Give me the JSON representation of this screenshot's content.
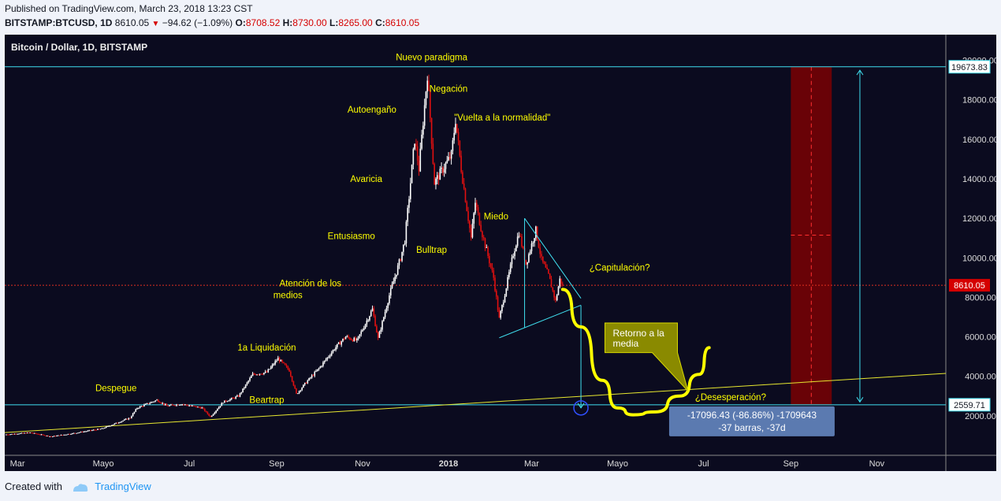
{
  "header": {
    "published": "Published on TradingView.com, March 23, 2018 13:23 CST",
    "symbol": "BITSTAMP:BTCUSD, 1D",
    "last": "8610.05",
    "change": "−94.62 (−1.09%)",
    "o_label": "O:",
    "o": "8708.52",
    "h_label": "H:",
    "h": "8730.00",
    "l_label": "L:",
    "l": "8265.00",
    "c_label": "C:",
    "c": "8610.05"
  },
  "footer": {
    "created_with": "Created with",
    "brand": "TradingView"
  },
  "colors": {
    "background": "#0b0b1f",
    "up": "#ffffff",
    "down": "#e01010",
    "annotation": "#ffff00",
    "cyan": "#40e0f0",
    "price_line": "#e03020",
    "shade": "#8a0000",
    "callout_bg": "#8a8a00",
    "measure_bg": "#5b7ab0"
  },
  "chart_data": {
    "type": "candlestick",
    "title": "Bitcoin / Dollar, 1D, BITSTAMP",
    "x_ticks": [
      {
        "label": "Mar",
        "date": "2017-03-01"
      },
      {
        "label": "Mayo",
        "date": "2017-05-01"
      },
      {
        "label": "Jul",
        "date": "2017-07-01"
      },
      {
        "label": "Sep",
        "date": "2017-09-01"
      },
      {
        "label": "Nov",
        "date": "2017-11-01"
      },
      {
        "label": "2018",
        "date": "2018-01-01",
        "bold": true
      },
      {
        "label": "Mar",
        "date": "2018-03-01"
      },
      {
        "label": "Mayo",
        "date": "2018-05-01"
      },
      {
        "label": "Jul",
        "date": "2018-07-01"
      },
      {
        "label": "Sep",
        "date": "2018-09-01"
      },
      {
        "label": "Nov",
        "date": "2018-11-01"
      }
    ],
    "y_ticks": [
      2000,
      4000,
      6000,
      8000,
      10000,
      12000,
      14000,
      16000,
      18000,
      20000
    ],
    "y_tick_labels": [
      "2000.00",
      "4000.00",
      "6000.00",
      "8000.00",
      "10000.00",
      "12000.00",
      "14000.00",
      "16000.00",
      "18000.00",
      "20000.00"
    ],
    "ylim": [
      0,
      21300
    ],
    "xlim": [
      "2017-02-20",
      "2018-12-20"
    ],
    "price_path": [
      [
        "2017-02-20",
        1050
      ],
      [
        "2017-03-10",
        1150
      ],
      [
        "2017-03-25",
        950
      ],
      [
        "2017-04-10",
        1120
      ],
      [
        "2017-04-30",
        1350
      ],
      [
        "2017-05-20",
        1900
      ],
      [
        "2017-05-25",
        2400
      ],
      [
        "2017-06-08",
        2800
      ],
      [
        "2017-06-15",
        2500
      ],
      [
        "2017-06-25",
        2600
      ],
      [
        "2017-07-10",
        2400
      ],
      [
        "2017-07-16",
        1950
      ],
      [
        "2017-07-25",
        2700
      ],
      [
        "2017-08-05",
        3000
      ],
      [
        "2017-08-15",
        4100
      ],
      [
        "2017-08-25",
        4200
      ],
      [
        "2017-09-02",
        4900
      ],
      [
        "2017-09-10",
        4300
      ],
      [
        "2017-09-15",
        3100
      ],
      [
        "2017-09-22",
        3700
      ],
      [
        "2017-10-01",
        4400
      ],
      [
        "2017-10-12",
        5400
      ],
      [
        "2017-10-20",
        6000
      ],
      [
        "2017-10-28",
        5800
      ],
      [
        "2017-11-08",
        7400
      ],
      [
        "2017-11-12",
        5900
      ],
      [
        "2017-11-20",
        8100
      ],
      [
        "2017-11-28",
        10000
      ],
      [
        "2017-12-01",
        10900
      ],
      [
        "2017-12-08",
        16000
      ],
      [
        "2017-12-11",
        14500
      ],
      [
        "2017-12-17",
        19300
      ],
      [
        "2017-12-22",
        13800
      ],
      [
        "2017-12-28",
        14500
      ],
      [
        "2018-01-03",
        15200
      ],
      [
        "2018-01-06",
        17000
      ],
      [
        "2018-01-10",
        14500
      ],
      [
        "2018-01-17",
        11000
      ],
      [
        "2018-01-20",
        12800
      ],
      [
        "2018-01-25",
        11200
      ],
      [
        "2018-02-02",
        9000
      ],
      [
        "2018-02-06",
        6900
      ],
      [
        "2018-02-10",
        8200
      ],
      [
        "2018-02-16",
        10200
      ],
      [
        "2018-02-20",
        11300
      ],
      [
        "2018-02-25",
        9700
      ],
      [
        "2018-03-04",
        11400
      ],
      [
        "2018-03-08",
        9900
      ],
      [
        "2018-03-13",
        9100
      ],
      [
        "2018-03-18",
        7800
      ],
      [
        "2018-03-21",
        8900
      ],
      [
        "2018-03-23",
        8610
      ]
    ],
    "price_line": {
      "value": 8610.05,
      "label": "8610.05"
    },
    "upper_level": {
      "value": 19673.83,
      "label": "19673.83"
    },
    "lower_level": {
      "value": 2559.71,
      "label": "2559.71"
    },
    "trendline": [
      [
        "2017-02-20",
        1150
      ],
      [
        "2018-12-20",
        4150
      ]
    ],
    "triangle": {
      "upper": [
        [
          "2018-02-24",
          12000
        ],
        [
          "2018-04-05",
          7950
        ]
      ],
      "lower": [
        [
          "2018-02-06",
          5950
        ],
        [
          "2018-04-05",
          7600
        ]
      ],
      "vertical_date": "2018-02-24"
    },
    "projection": [
      [
        "2018-03-23",
        8400
      ],
      [
        "2018-04-05",
        6500
      ],
      [
        "2018-04-20",
        3800
      ],
      [
        "2018-05-01",
        2400
      ],
      [
        "2018-05-12",
        2050
      ],
      [
        "2018-05-28",
        2200
      ],
      [
        "2018-06-14",
        3000
      ],
      [
        "2018-06-28",
        4100
      ],
      [
        "2018-07-05",
        5450
      ]
    ],
    "measure_arrow": {
      "date": "2018-04-05",
      "from": 7600,
      "to": 2400
    },
    "right_arrow": {
      "date": "2018-10-20",
      "from": 19500,
      "to": 2700
    },
    "shaded_zone": {
      "from": "2018-09-01",
      "to": "2018-09-30",
      "top": 19673.83,
      "bottom": 2559.71,
      "mid": 11150
    },
    "annotations": [
      {
        "text": "Nuevo paradigma",
        "date": "2017-12-20",
        "y": 20000,
        "anchor": "middle"
      },
      {
        "text": "Negación",
        "date": "2018-01-01",
        "y": 18400,
        "anchor": "middle"
      },
      {
        "text": "\"Vuelta a la normalidad\"",
        "date": "2018-01-05",
        "y": 16950,
        "anchor": "start"
      },
      {
        "text": "Autoengaño",
        "date": "2017-11-25",
        "y": 17350,
        "anchor": "end"
      },
      {
        "text": "Avaricia",
        "date": "2017-11-15",
        "y": 13850,
        "anchor": "end"
      },
      {
        "text": "Miedo",
        "date": "2018-01-26",
        "y": 11950,
        "anchor": "start"
      },
      {
        "text": "Entusiasmo",
        "date": "2017-10-24",
        "y": 10950,
        "anchor": "middle"
      },
      {
        "text": "Bulltrap",
        "date": "2017-12-20",
        "y": 10250,
        "anchor": "middle"
      },
      {
        "text": "¿Capitulación?",
        "date": "2018-04-11",
        "y": 9350,
        "anchor": "start"
      },
      {
        "text": "Atención de los",
        "date": "2017-09-25",
        "y": 8550,
        "anchor": "middle"
      },
      {
        "text": "medios",
        "date": "2017-09-09",
        "y": 7950,
        "anchor": "middle"
      },
      {
        "text": "1a Liquidación",
        "date": "2017-08-25",
        "y": 5300,
        "anchor": "middle"
      },
      {
        "text": "Despegue",
        "date": "2017-05-10",
        "y": 3250,
        "anchor": "middle"
      },
      {
        "text": "Beartrap",
        "date": "2017-08-25",
        "y": 2650,
        "anchor": "middle"
      },
      {
        "text": "¿Desesperación?",
        "date": "2018-06-25",
        "y": 2800,
        "anchor": "start"
      }
    ],
    "callout": {
      "lines": [
        "Retorno a la",
        "media"
      ],
      "date": "2018-05-20"
    },
    "measure_box": {
      "line1": "-17096.43 (-86.86%) -1709643",
      "line2": "-37 barras, -37d"
    }
  }
}
